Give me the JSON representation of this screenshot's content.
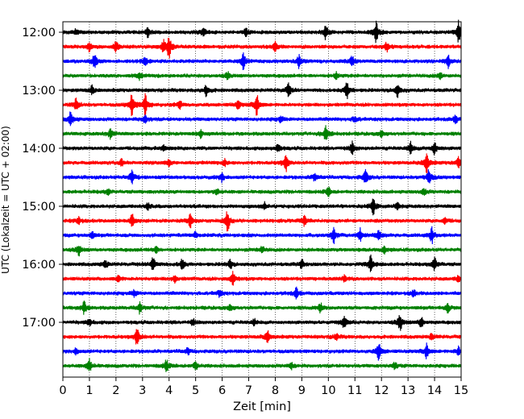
{
  "chart_data": {
    "type": "line",
    "xlabel": "Zeit  [min]",
    "ylabel": "UTC (Lokalzeit = UTC + 02:00)",
    "xlim": [
      0,
      15
    ],
    "x_ticks": [
      "0",
      "1",
      "2",
      "3",
      "4",
      "5",
      "6",
      "7",
      "8",
      "9",
      "10",
      "11",
      "12",
      "13",
      "14",
      "15"
    ],
    "y_ticks": [
      "12:00",
      "13:00",
      "14:00",
      "15:00",
      "16:00",
      "17:00"
    ],
    "grid": "vertical-dotted",
    "colors": [
      "#000000",
      "#ff0000",
      "#0000ff",
      "#008000"
    ],
    "series": [
      {
        "time": "12:00",
        "color": "#000000",
        "bursts": [
          [
            0.5,
            0.3
          ],
          [
            3.2,
            0.5
          ],
          [
            5.3,
            0.4
          ],
          [
            6.9,
            0.4
          ],
          [
            9.9,
            0.7
          ],
          [
            11.8,
            1.0
          ],
          [
            14.9,
            1.0
          ]
        ]
      },
      {
        "time": "12:15",
        "color": "#ff0000",
        "bursts": [
          [
            1.0,
            0.4
          ],
          [
            2.0,
            0.5
          ],
          [
            3.8,
            0.6
          ],
          [
            4.0,
            1.0
          ],
          [
            8.0,
            0.4
          ],
          [
            12.2,
            0.4
          ]
        ]
      },
      {
        "time": "12:30",
        "color": "#0000ff",
        "bursts": [
          [
            1.2,
            0.8
          ],
          [
            3.1,
            0.4
          ],
          [
            6.8,
            0.8
          ],
          [
            8.9,
            0.6
          ],
          [
            10.9,
            0.5
          ],
          [
            14.5,
            0.6
          ]
        ]
      },
      {
        "time": "12:45",
        "color": "#008000",
        "bursts": [
          [
            2.9,
            0.3
          ],
          [
            6.2,
            0.3
          ],
          [
            10.3,
            0.3
          ],
          [
            14.2,
            0.3
          ]
        ]
      },
      {
        "time": "13:00",
        "color": "#000000",
        "bursts": [
          [
            1.1,
            0.4
          ],
          [
            5.4,
            0.5
          ],
          [
            8.5,
            0.6
          ],
          [
            10.7,
            0.8
          ],
          [
            12.6,
            0.6
          ]
        ]
      },
      {
        "time": "13:15",
        "color": "#ff0000",
        "bursts": [
          [
            0.5,
            0.6
          ],
          [
            2.6,
            1.0
          ],
          [
            3.1,
            1.0
          ],
          [
            4.4,
            0.4
          ],
          [
            6.6,
            0.4
          ],
          [
            7.3,
            1.0
          ]
        ]
      },
      {
        "time": "13:30",
        "color": "#0000ff",
        "bursts": [
          [
            0.3,
            0.7
          ],
          [
            3.1,
            0.4
          ],
          [
            8.2,
            0.3
          ],
          [
            11.0,
            0.3
          ],
          [
            14.8,
            0.4
          ]
        ]
      },
      {
        "time": "13:45",
        "color": "#008000",
        "bursts": [
          [
            1.8,
            0.5
          ],
          [
            5.2,
            0.4
          ],
          [
            9.9,
            0.8
          ],
          [
            12.0,
            0.3
          ]
        ]
      },
      {
        "time": "14:00",
        "color": "#000000",
        "bursts": [
          [
            3.8,
            0.3
          ],
          [
            8.1,
            0.4
          ],
          [
            10.9,
            0.6
          ],
          [
            13.1,
            0.6
          ],
          [
            14.0,
            0.6
          ]
        ]
      },
      {
        "time": "14:15",
        "color": "#ff0000",
        "bursts": [
          [
            2.2,
            0.3
          ],
          [
            4.0,
            0.3
          ],
          [
            6.1,
            0.3
          ],
          [
            8.4,
            0.9
          ],
          [
            13.7,
            1.0
          ],
          [
            14.9,
            0.5
          ]
        ]
      },
      {
        "time": "14:30",
        "color": "#0000ff",
        "bursts": [
          [
            2.6,
            0.7
          ],
          [
            6.0,
            0.4
          ],
          [
            9.5,
            0.4
          ],
          [
            11.4,
            0.7
          ],
          [
            13.8,
            0.8
          ]
        ]
      },
      {
        "time": "14:45",
        "color": "#008000",
        "bursts": [
          [
            1.7,
            0.3
          ],
          [
            5.8,
            0.3
          ],
          [
            10.0,
            0.4
          ],
          [
            13.6,
            0.3
          ]
        ]
      },
      {
        "time": "15:00",
        "color": "#000000",
        "bursts": [
          [
            3.2,
            0.3
          ],
          [
            7.6,
            0.3
          ],
          [
            11.7,
            0.8
          ],
          [
            12.6,
            0.3
          ]
        ]
      },
      {
        "time": "15:15",
        "color": "#ff0000",
        "bursts": [
          [
            0.6,
            0.4
          ],
          [
            2.6,
            0.6
          ],
          [
            4.8,
            0.6
          ],
          [
            6.2,
            1.0
          ],
          [
            9.1,
            0.5
          ],
          [
            14.4,
            0.3
          ]
        ]
      },
      {
        "time": "15:30",
        "color": "#0000ff",
        "bursts": [
          [
            1.1,
            0.3
          ],
          [
            5.0,
            0.3
          ],
          [
            10.2,
            0.8
          ],
          [
            11.2,
            0.6
          ],
          [
            11.9,
            0.5
          ],
          [
            13.9,
            0.7
          ]
        ]
      },
      {
        "time": "15:45",
        "color": "#008000",
        "bursts": [
          [
            0.6,
            0.5
          ],
          [
            3.5,
            0.3
          ],
          [
            7.5,
            0.3
          ],
          [
            12.1,
            0.3
          ]
        ]
      },
      {
        "time": "16:00",
        "color": "#000000",
        "bursts": [
          [
            1.6,
            0.4
          ],
          [
            3.4,
            0.7
          ],
          [
            4.5,
            0.5
          ],
          [
            6.3,
            0.4
          ],
          [
            9.0,
            0.4
          ],
          [
            11.6,
            0.8
          ],
          [
            14.0,
            0.7
          ]
        ]
      },
      {
        "time": "16:15",
        "color": "#ff0000",
        "bursts": [
          [
            2.1,
            0.3
          ],
          [
            4.2,
            0.3
          ],
          [
            6.4,
            0.6
          ],
          [
            10.6,
            0.3
          ],
          [
            14.9,
            0.3
          ]
        ]
      },
      {
        "time": "16:30",
        "color": "#0000ff",
        "bursts": [
          [
            2.7,
            0.3
          ],
          [
            5.9,
            0.3
          ],
          [
            8.8,
            0.5
          ],
          [
            13.2,
            0.3
          ]
        ]
      },
      {
        "time": "16:45",
        "color": "#008000",
        "bursts": [
          [
            0.8,
            0.6
          ],
          [
            2.9,
            0.5
          ],
          [
            6.3,
            0.3
          ],
          [
            9.7,
            0.4
          ],
          [
            14.5,
            0.4
          ]
        ]
      },
      {
        "time": "17:00",
        "color": "#000000",
        "bursts": [
          [
            1.0,
            0.3
          ],
          [
            4.9,
            0.3
          ],
          [
            7.2,
            0.3
          ],
          [
            10.6,
            0.6
          ],
          [
            12.7,
            0.8
          ],
          [
            13.5,
            0.5
          ]
        ]
      },
      {
        "time": "17:15",
        "color": "#ff0000",
        "bursts": [
          [
            2.8,
            1.0
          ],
          [
            7.7,
            0.6
          ],
          [
            10.3,
            0.3
          ],
          [
            13.9,
            0.3
          ]
        ]
      },
      {
        "time": "17:30",
        "color": "#0000ff",
        "bursts": [
          [
            0.5,
            0.3
          ],
          [
            4.7,
            0.3
          ],
          [
            11.9,
            0.8
          ],
          [
            13.7,
            0.7
          ],
          [
            14.9,
            0.4
          ]
        ]
      },
      {
        "time": "17:45",
        "color": "#008000",
        "bursts": [
          [
            1.0,
            0.6
          ],
          [
            3.9,
            0.6
          ],
          [
            5.0,
            0.4
          ],
          [
            8.6,
            0.3
          ],
          [
            12.5,
            0.3
          ]
        ]
      }
    ]
  }
}
